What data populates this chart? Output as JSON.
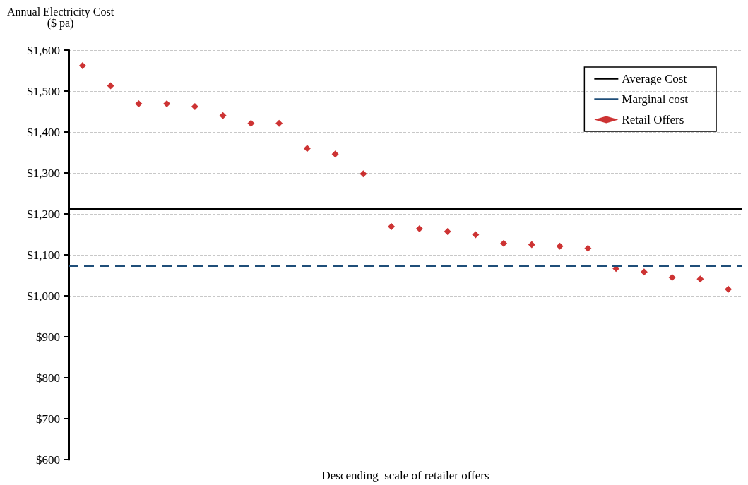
{
  "chart_data": {
    "type": "scatter",
    "ylabel": "Annual Electricity Cost\n($ pa)",
    "xlabel": "Descending  scale of retailer offers",
    "categories": [
      null,
      null,
      null,
      null,
      null,
      null,
      null,
      null,
      null,
      null,
      null,
      null,
      null,
      null,
      null,
      null,
      null,
      null,
      null,
      null,
      null,
      null,
      null,
      null
    ],
    "series": [
      {
        "name": "Retail Offers",
        "color": "#c00000",
        "values": [
          1562,
          1513,
          1469,
          1469,
          1462,
          1440,
          1421,
          1421,
          1360,
          1346,
          1298,
          1169,
          1164,
          1157,
          1149,
          1128,
          1125,
          1121,
          1116,
          1067,
          1058,
          1045,
          1041,
          1016
        ]
      }
    ],
    "ref_lines": [
      {
        "axis": "y",
        "value": 1213,
        "label": "Average Cost",
        "color": "#000000",
        "line_style": "solid"
      },
      {
        "axis": "y",
        "value": 1074,
        "label": "Marginal cost",
        "color": "#1f4e79",
        "line_style": "dashed"
      }
    ],
    "ylim": [
      600,
      1600
    ],
    "yticks": [
      {
        "value": 600,
        "label": "$600"
      },
      {
        "value": 700,
        "label": "$700"
      },
      {
        "value": 800,
        "label": "$800"
      },
      {
        "value": 900,
        "label": "$900"
      },
      {
        "value": 1000,
        "label": "$1,000"
      },
      {
        "value": 1100,
        "label": "$1,100"
      },
      {
        "value": 1200,
        "label": "$1,200"
      },
      {
        "value": 1300,
        "label": "$1,300"
      },
      {
        "value": 1400,
        "label": "$1,400"
      },
      {
        "value": 1500,
        "label": "$1,500"
      },
      {
        "value": 1600,
        "label": "$1,600"
      }
    ],
    "grid": "y",
    "legend": "top right",
    "marker": "diamond"
  }
}
